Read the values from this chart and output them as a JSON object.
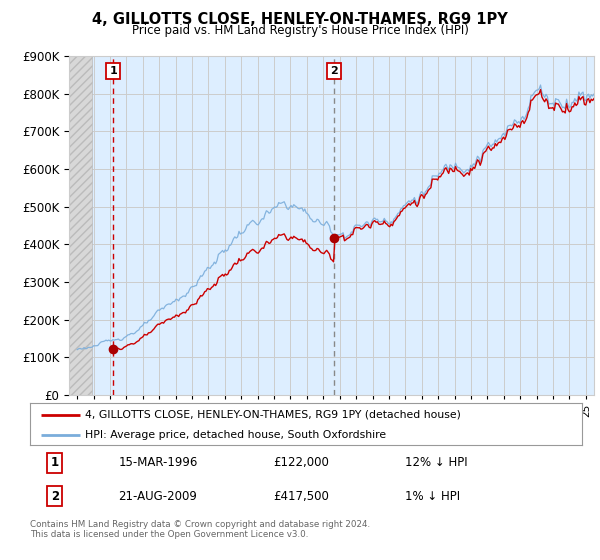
{
  "title": "4, GILLOTTS CLOSE, HENLEY-ON-THAMES, RG9 1PY",
  "subtitle": "Price paid vs. HM Land Registry's House Price Index (HPI)",
  "legend_line1": "4, GILLOTTS CLOSE, HENLEY-ON-THAMES, RG9 1PY (detached house)",
  "legend_line2": "HPI: Average price, detached house, South Oxfordshire",
  "transaction1_date": "15-MAR-1996",
  "transaction1_price": "£122,000",
  "transaction1_hpi": "12% ↓ HPI",
  "transaction2_date": "21-AUG-2009",
  "transaction2_price": "£417,500",
  "transaction2_hpi": "1% ↓ HPI",
  "copyright": "Contains HM Land Registry data © Crown copyright and database right 2024.\nThis data is licensed under the Open Government Licence v3.0.",
  "sale1_year": 1996.21,
  "sale1_price": 122000,
  "sale2_year": 2009.63,
  "sale2_price": 417500,
  "ylim_min": 0,
  "ylim_max": 900000,
  "xlim_min": 1993.5,
  "xlim_max": 2025.5,
  "hpi_line_color": "#7aaddb",
  "price_line_color": "#cc0000",
  "sale_dot_color": "#aa0000",
  "vline1_color": "#cc0000",
  "vline2_color": "#888888",
  "grid_color": "#cccccc",
  "background_color": "#ddeeff",
  "hatch_bg_color": "#d8d8d8"
}
